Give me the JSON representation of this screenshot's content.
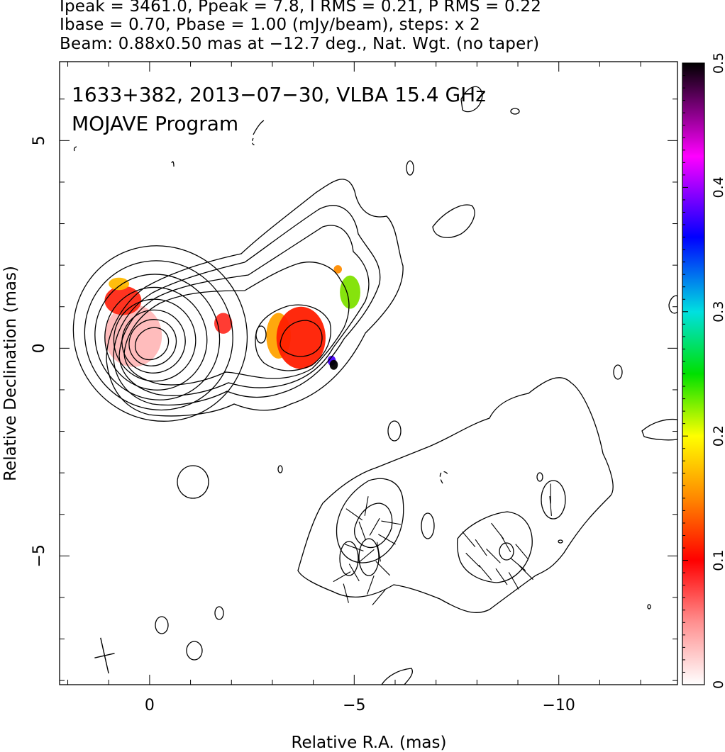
{
  "header": {
    "line1": "Ipeak = 3461.0, Ppeak = 7.8, I RMS = 0.21, P RMS = 0.22",
    "line2": "Ibase = 0.70, Pbase = 1.00 (mJy/beam), steps: x 2",
    "line3": "Beam: 0.88x0.50 mas at −12.7 deg., Nat. Wgt. (no taper)"
  },
  "chart_data": {
    "type": "heatmap",
    "annotations": {
      "source_line": "1633+382, 2013−07−30, VLBA 15.4 GHz",
      "program_line": "MOJAVE Program"
    },
    "xlabel": "Relative R.A. (mas)",
    "ylabel": "Relative Declination (mas)",
    "xlim": [
      2.2,
      -12.9
    ],
    "ylim": [
      -8.1,
      6.9
    ],
    "x_ticks": [
      0,
      -5,
      -10
    ],
    "x_tick_labels": [
      "0",
      "−5",
      "−10"
    ],
    "y_ticks": [
      5,
      0,
      -5
    ],
    "y_tick_labels": [
      "5",
      "0",
      "−5"
    ],
    "grid": false,
    "colorbar": {
      "range": [
        0,
        0.5
      ],
      "ticks": [
        0,
        0.1,
        0.2,
        0.3,
        0.4,
        0.5
      ],
      "tick_labels": [
        "0",
        "0.1",
        "0.2",
        "0.3",
        "0.4",
        "0.5"
      ],
      "position": "right",
      "colors": [
        "#ffffff",
        "#ff0000",
        "#ff8800",
        "#ffff00",
        "#00e000",
        "#00e0e0",
        "#0000ff",
        "#ff00ff",
        "#000000"
      ]
    },
    "core_contours": {
      "center": [
        0,
        0.05
      ],
      "semi_axes": [
        [
          0.45,
          0.28
        ],
        [
          0.62,
          0.42
        ],
        [
          0.82,
          0.58
        ],
        [
          1.05,
          0.76
        ],
        [
          1.3,
          0.96
        ],
        [
          1.58,
          1.18
        ],
        [
          1.88,
          1.4
        ],
        [
          2.2,
          1.65
        ]
      ]
    },
    "fractional_polarization_regions": [
      {
        "x": 0.4,
        "y": 0.3,
        "rx": 0.7,
        "ry": 0.75,
        "value": 0.05
      },
      {
        "x": 0.65,
        "y": 1.15,
        "rx": 0.45,
        "ry": 0.35,
        "value": 0.1
      },
      {
        "x": 0.75,
        "y": 1.55,
        "rx": 0.25,
        "ry": 0.15,
        "value": 0.16
      },
      {
        "x": -1.8,
        "y": 0.6,
        "rx": 0.22,
        "ry": 0.25,
        "value": 0.09
      },
      {
        "x": -3.15,
        "y": 0.3,
        "rx": 0.3,
        "ry": 0.55,
        "value": 0.15
      },
      {
        "x": -3.7,
        "y": 0.25,
        "rx": 0.6,
        "ry": 0.75,
        "value": 0.11
      },
      {
        "x": -4.6,
        "y": 1.9,
        "rx": 0.1,
        "ry": 0.1,
        "value": 0.14
      },
      {
        "x": -4.9,
        "y": 1.35,
        "rx": 0.25,
        "ry": 0.4,
        "value": 0.2
      },
      {
        "x": -4.45,
        "y": -0.3,
        "rx": 0.1,
        "ry": 0.12,
        "value": 0.38
      },
      {
        "x": -4.5,
        "y": -0.4,
        "rx": 0.1,
        "ry": 0.12,
        "value": 0.5
      }
    ],
    "beam": {
      "major_mas": 0.88,
      "minor_mas": 0.5,
      "pa_deg": -12.7,
      "center": [
        1.1,
        -7.4
      ]
    }
  },
  "colors": {
    "contour": "#000000",
    "background": "#ffffff"
  }
}
